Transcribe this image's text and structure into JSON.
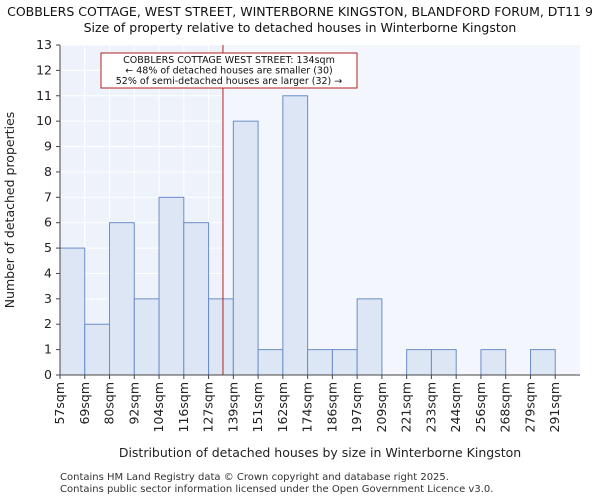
{
  "header": {
    "title": "COBBLERS COTTAGE, WEST STREET, WINTERBORNE KINGSTON, BLANDFORD FORUM, DT11 9",
    "subtitle": "Size of property relative to detached houses in Winterborne Kingston"
  },
  "chart_data": {
    "type": "bar",
    "categories": [
      "57sqm",
      "69sqm",
      "80sqm",
      "92sqm",
      "104sqm",
      "116sqm",
      "127sqm",
      "139sqm",
      "151sqm",
      "162sqm",
      "174sqm",
      "186sqm",
      "197sqm",
      "209sqm",
      "221sqm",
      "233sqm",
      "244sqm",
      "256sqm",
      "268sqm",
      "279sqm",
      "291sqm"
    ],
    "values": [
      5,
      2,
      6,
      3,
      7,
      6,
      3,
      10,
      1,
      11,
      1,
      1,
      3,
      0,
      1,
      1,
      0,
      1,
      0,
      1,
      0
    ],
    "xlabel": "Distribution of detached houses by size in Winterborne Kingston",
    "ylabel": "Number of detached properties",
    "ylim": [
      0,
      13
    ],
    "yticks": [
      0,
      1,
      2,
      3,
      4,
      5,
      6,
      7,
      8,
      9,
      10,
      11,
      12,
      13
    ],
    "grid": true,
    "bar_color": "#dce6f5",
    "bar_edge_color": "#6a8ec9",
    "marker": {
      "value": 134,
      "unit": "sqm",
      "color": "#b22222"
    },
    "annotation": {
      "lines": [
        "COBBLERS COTTAGE WEST STREET: 134sqm",
        "← 48% of detached houses are smaller (30)",
        "52% of semi-detached houses are larger (32) →"
      ],
      "border_color": "#b22222"
    }
  },
  "footer": {
    "line1": "Contains HM Land Registry data © Crown copyright and database right 2025.",
    "line2": "Contains public sector information licensed under the Open Government Licence v3.0."
  }
}
